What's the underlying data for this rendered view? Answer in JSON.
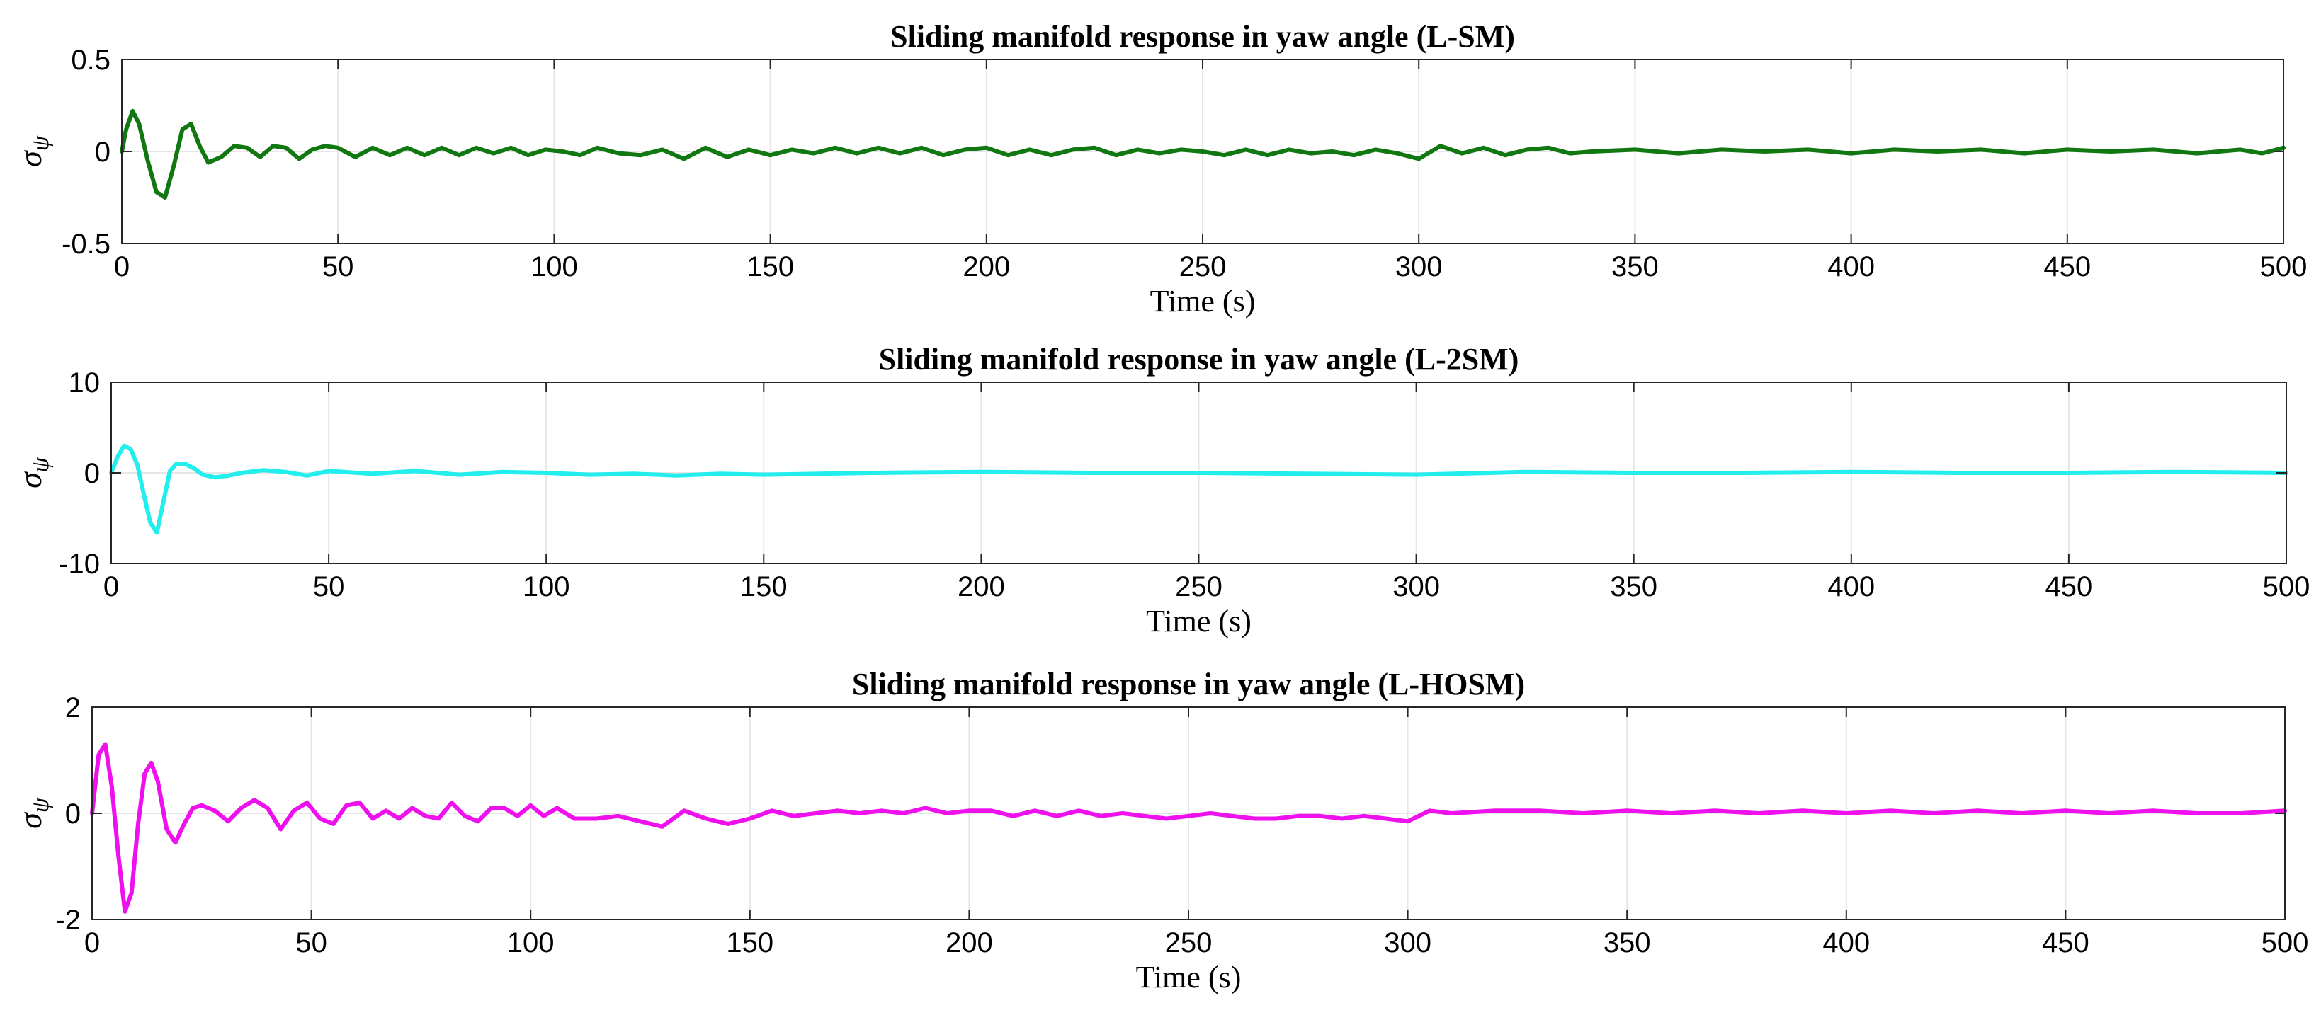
{
  "chart_data": [
    {
      "type": "line",
      "title": "Sliding manifold response in yaw angle (L-SM)",
      "xlabel": "Time (s)",
      "ylabel": "σ",
      "ylabel_sub": "ψ",
      "xlim": [
        0,
        500
      ],
      "ylim": [
        -0.5,
        0.5
      ],
      "xticks": [
        0,
        50,
        100,
        150,
        200,
        250,
        300,
        350,
        400,
        450,
        500
      ],
      "yticks": [
        -0.5,
        0,
        0.5
      ],
      "ytick_labels": [
        "-0.5",
        "0",
        "0.5"
      ],
      "grid": true,
      "series": [
        {
          "name": "σψ (L-SM)",
          "color": "#117711",
          "x": [
            0,
            1,
            2.5,
            4,
            6,
            8,
            10,
            12,
            14,
            16,
            18,
            20,
            23,
            26,
            29,
            32,
            35,
            38,
            41,
            44,
            47,
            50,
            54,
            58,
            62,
            66,
            70,
            74,
            78,
            82,
            86,
            90,
            94,
            98,
            102,
            106,
            110,
            115,
            120,
            125,
            130,
            135,
            140,
            145,
            150,
            155,
            160,
            165,
            170,
            175,
            180,
            185,
            190,
            195,
            200,
            205,
            210,
            215,
            220,
            225,
            230,
            235,
            240,
            245,
            250,
            255,
            260,
            265,
            270,
            275,
            280,
            285,
            290,
            295,
            300,
            305,
            310,
            315,
            320,
            325,
            330,
            335,
            340,
            350,
            360,
            370,
            380,
            390,
            400,
            410,
            420,
            430,
            440,
            450,
            460,
            470,
            480,
            490,
            495,
            500
          ],
          "y": [
            0,
            0.12,
            0.22,
            0.15,
            -0.05,
            -0.22,
            -0.25,
            -0.08,
            0.12,
            0.15,
            0.03,
            -0.06,
            -0.03,
            0.03,
            0.02,
            -0.03,
            0.03,
            0.02,
            -0.04,
            0.01,
            0.03,
            0.02,
            -0.03,
            0.02,
            -0.02,
            0.02,
            -0.02,
            0.02,
            -0.02,
            0.02,
            -0.01,
            0.02,
            -0.02,
            0.01,
            0,
            -0.02,
            0.02,
            -0.01,
            -0.02,
            0.01,
            -0.04,
            0.02,
            -0.03,
            0.01,
            -0.02,
            0.01,
            -0.01,
            0.02,
            -0.01,
            0.02,
            -0.01,
            0.02,
            -0.02,
            0.01,
            0.02,
            -0.02,
            0.01,
            -0.02,
            0.01,
            0.02,
            -0.02,
            0.01,
            -0.01,
            0.01,
            0,
            -0.02,
            0.01,
            -0.02,
            0.01,
            -0.01,
            0,
            -0.02,
            0.01,
            -0.01,
            -0.04,
            0.03,
            -0.01,
            0.02,
            -0.02,
            0.01,
            0.02,
            -0.01,
            0,
            0.01,
            -0.01,
            0.01,
            0,
            0.01,
            -0.01,
            0.01,
            0,
            0.01,
            -0.01,
            0.01,
            0,
            0.01,
            -0.01,
            0.01,
            -0.01,
            0.02
          ]
        }
      ]
    },
    {
      "type": "line",
      "title": "Sliding manifold response in yaw angle (L-2SM)",
      "xlabel": "Time (s)",
      "ylabel": "σ",
      "ylabel_sub": "ψ",
      "xlim": [
        0,
        500
      ],
      "ylim": [
        -10,
        10
      ],
      "xticks": [
        0,
        50,
        100,
        150,
        200,
        250,
        300,
        350,
        400,
        450,
        500
      ],
      "yticks": [
        -10,
        0,
        10
      ],
      "ytick_labels": [
        "-10",
        "0",
        "10"
      ],
      "grid": true,
      "series": [
        {
          "name": "σψ (L-2SM)",
          "color": "#22eeee",
          "x": [
            0,
            1.5,
            3,
            4.5,
            6,
            7.5,
            9,
            10.5,
            12,
            13.5,
            15,
            17,
            19,
            21,
            24,
            27,
            30,
            35,
            40,
            45,
            50,
            60,
            70,
            80,
            90,
            100,
            110,
            120,
            130,
            140,
            150,
            175,
            200,
            225,
            250,
            275,
            300,
            325,
            350,
            375,
            400,
            425,
            450,
            475,
            500
          ],
          "y": [
            0,
            1.8,
            3.0,
            2.6,
            0.9,
            -2.4,
            -5.5,
            -6.6,
            -3.2,
            0.2,
            1.0,
            1.0,
            0.5,
            -0.2,
            -0.5,
            -0.3,
            0,
            0.3,
            0.1,
            -0.3,
            0.2,
            -0.1,
            0.2,
            -0.2,
            0.1,
            0,
            -0.2,
            -0.1,
            -0.3,
            -0.1,
            -0.2,
            0,
            0.1,
            0,
            0,
            -0.1,
            -0.2,
            0.1,
            0,
            0,
            0.1,
            0,
            0,
            0.1,
            0
          ]
        }
      ]
    },
    {
      "type": "line",
      "title": "Sliding manifold response in yaw angle (L-HOSM)",
      "xlabel": "Time (s)",
      "ylabel": "σ",
      "ylabel_sub": "ψ",
      "xlim": [
        0,
        500
      ],
      "ylim": [
        -2,
        2
      ],
      "xticks": [
        0,
        50,
        100,
        150,
        200,
        250,
        300,
        350,
        400,
        450,
        500
      ],
      "yticks": [
        -2,
        0,
        2
      ],
      "ytick_labels": [
        "-2",
        "0",
        "2"
      ],
      "grid": true,
      "series": [
        {
          "name": "σψ (L-HOSM)",
          "color": "#ee11ee",
          "x": [
            0,
            1.5,
            3,
            4.5,
            6,
            7.5,
            9,
            10.5,
            12,
            13.5,
            15,
            17,
            19,
            21,
            23,
            25,
            28,
            31,
            34,
            37,
            40,
            43,
            46,
            49,
            52,
            55,
            58,
            61,
            64,
            67,
            70,
            73,
            76,
            79,
            82,
            85,
            88,
            91,
            94,
            97,
            100,
            103,
            106,
            110,
            115,
            120,
            125,
            130,
            135,
            140,
            145,
            150,
            155,
            160,
            165,
            170,
            175,
            180,
            185,
            190,
            195,
            200,
            205,
            210,
            215,
            220,
            225,
            230,
            235,
            240,
            245,
            250,
            255,
            260,
            265,
            270,
            275,
            280,
            285,
            290,
            295,
            300,
            305,
            310,
            320,
            330,
            340,
            350,
            360,
            370,
            380,
            390,
            400,
            410,
            420,
            430,
            440,
            450,
            460,
            470,
            480,
            490,
            500
          ],
          "y": [
            0,
            1.1,
            1.3,
            0.5,
            -0.8,
            -1.85,
            -1.5,
            -0.2,
            0.75,
            0.95,
            0.6,
            -0.3,
            -0.55,
            -0.2,
            0.1,
            0.15,
            0.05,
            -0.15,
            0.1,
            0.25,
            0.1,
            -0.3,
            0.05,
            0.2,
            -0.1,
            -0.2,
            0.15,
            0.2,
            -0.1,
            0.05,
            -0.1,
            0.1,
            -0.05,
            -0.1,
            0.2,
            -0.05,
            -0.15,
            0.1,
            0.1,
            -0.05,
            0.15,
            -0.05,
            0.1,
            -0.1,
            -0.1,
            -0.05,
            -0.15,
            -0.25,
            0.05,
            -0.1,
            -0.2,
            -0.1,
            0.05,
            -0.05,
            0,
            0.05,
            0,
            0.05,
            0,
            0.1,
            0,
            0.05,
            0.05,
            -0.05,
            0.05,
            -0.05,
            0.05,
            -0.05,
            0,
            -0.05,
            -0.1,
            -0.05,
            0,
            -0.05,
            -0.1,
            -0.1,
            -0.05,
            -0.05,
            -0.1,
            -0.05,
            -0.1,
            -0.15,
            0.05,
            0,
            0.05,
            0.05,
            0,
            0.05,
            0,
            0.05,
            0,
            0.05,
            0,
            0.05,
            0,
            0.05,
            0,
            0.05,
            0,
            0.05,
            0,
            0,
            0.05
          ]
        }
      ]
    }
  ]
}
